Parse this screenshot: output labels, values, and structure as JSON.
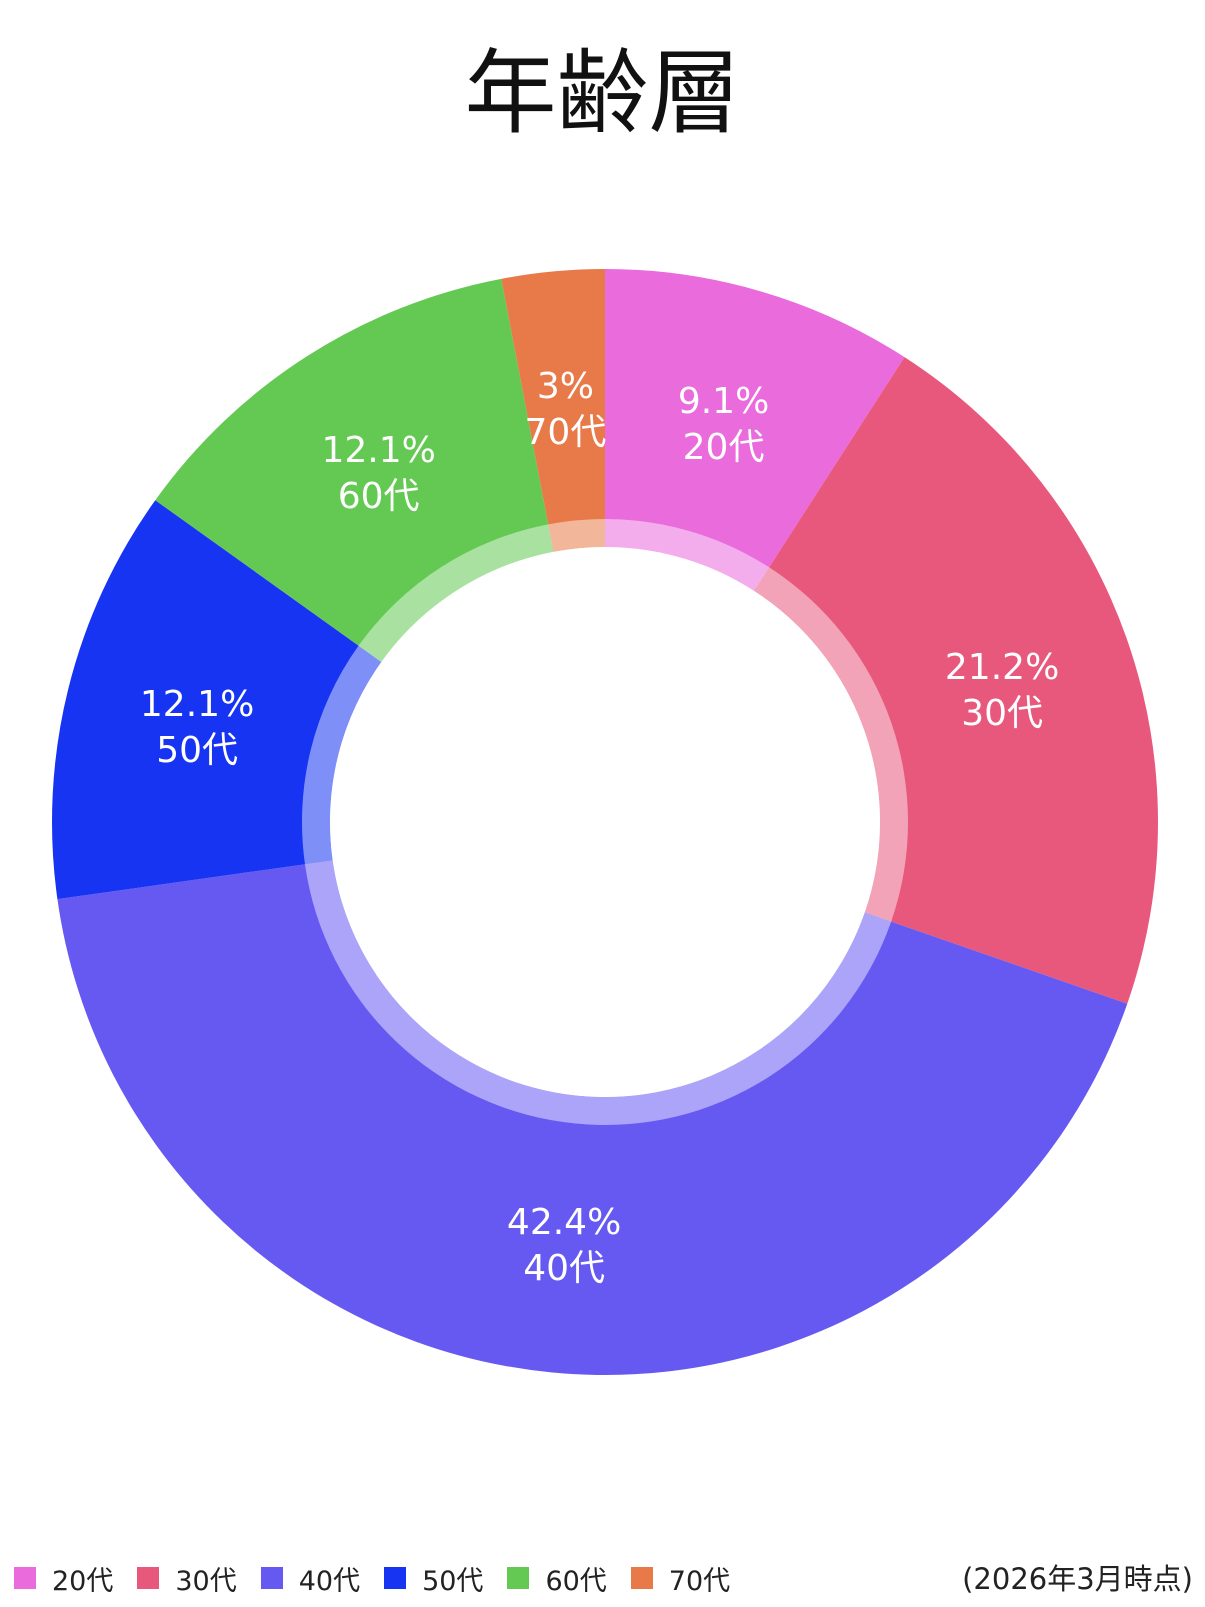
{
  "chart_data": {
    "type": "pie",
    "title": "年齢層",
    "donut": true,
    "slices": [
      {
        "name": "20代",
        "value": 9.1,
        "label": "9.1%",
        "color": "#E96BDC"
      },
      {
        "name": "30代",
        "value": 21.2,
        "label": "21.2%",
        "color": "#E8587C"
      },
      {
        "name": "40代",
        "value": 42.4,
        "label": "42.4%",
        "color": "#6659F2"
      },
      {
        "name": "50代",
        "value": 12.1,
        "label": "12.1%",
        "color": "#1734F3"
      },
      {
        "name": "60代",
        "value": 12.1,
        "label": "12.1%",
        "color": "#63C953"
      },
      {
        "name": "70代",
        "value": 3,
        "label": "3%",
        "color": "#E87A4A"
      }
    ],
    "legend_position": "bottom-left",
    "note": "(2026年3月時点)"
  }
}
